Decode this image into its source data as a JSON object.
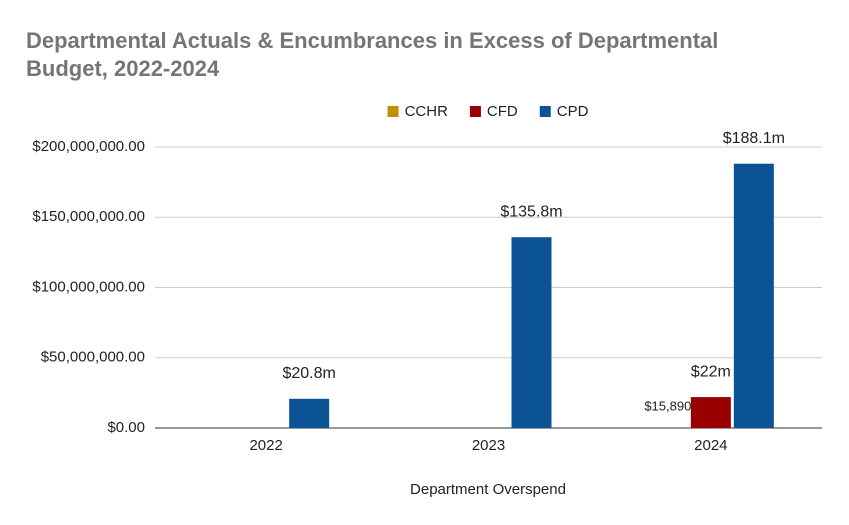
{
  "chart_data": {
    "type": "bar",
    "title": "Departmental Actuals & Encumbrances in Excess of Departmental Budget, 2022-2024",
    "x_label": "Department Overspend",
    "categories": [
      "2022",
      "2023",
      "2024"
    ],
    "series": [
      {
        "name": "CCHR",
        "color": "#bf9000",
        "values": [
          null,
          null,
          15890
        ],
        "value_labels": [
          null,
          null,
          "$15,890"
        ]
      },
      {
        "name": "CFD",
        "color": "#990000",
        "values": [
          null,
          null,
          22000000
        ],
        "value_labels": [
          null,
          null,
          "$22m"
        ]
      },
      {
        "name": "CPD",
        "color": "#0b5394",
        "values": [
          20800000,
          135800000,
          188100000
        ],
        "value_labels": [
          "$20.8m",
          "$135.8m",
          "$188.1m"
        ]
      }
    ],
    "ylim": [
      0,
      200000000
    ],
    "yticks": [
      {
        "value": 0,
        "label": "$0.00"
      },
      {
        "value": 50000000,
        "label": "$50,000,000.00"
      },
      {
        "value": 100000000,
        "label": "$100,000,000.00"
      },
      {
        "value": 150000000,
        "label": "$150,000,000.00"
      },
      {
        "value": 200000000,
        "label": "$200,000,000.00"
      }
    ],
    "grid": true,
    "legend": "top"
  }
}
